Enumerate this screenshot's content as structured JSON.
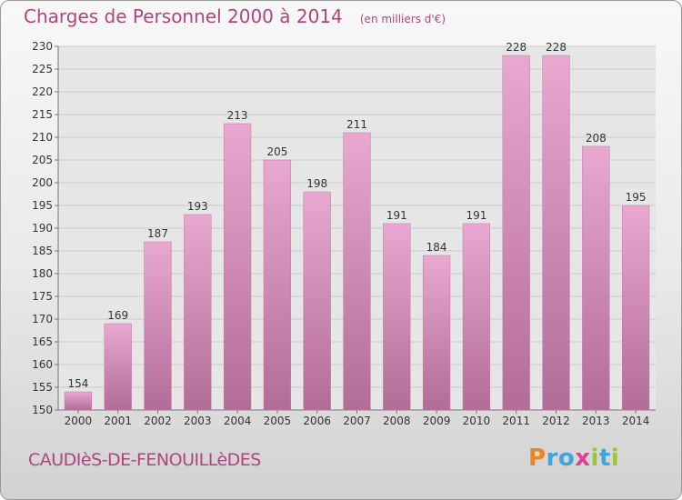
{
  "header": {
    "title": "Charges de Personnel 2000 à 2014",
    "subtitle": "(en milliers d'€)"
  },
  "footer": {
    "commune": "CAUDIèS-DE-FENOUILLèDES",
    "logo_text": "Proxiti"
  },
  "colors": {
    "accent": "#b0457d",
    "bar_light": "#e8a8d0",
    "bar_dark": "#b26c98"
  },
  "chart_data": {
    "type": "bar",
    "title": "Charges de Personnel 2000 à 2014",
    "subtitle": "(en milliers d'€)",
    "xlabel": "",
    "ylabel": "",
    "categories": [
      "2000",
      "2001",
      "2002",
      "2003",
      "2004",
      "2005",
      "2006",
      "2007",
      "2008",
      "2009",
      "2010",
      "2011",
      "2012",
      "2013",
      "2014"
    ],
    "values": [
      154,
      169,
      187,
      193,
      213,
      205,
      198,
      211,
      191,
      184,
      191,
      228,
      228,
      208,
      195
    ],
    "ylim": [
      150,
      230
    ],
    "yticks": [
      150,
      155,
      160,
      165,
      170,
      175,
      180,
      185,
      190,
      195,
      200,
      205,
      210,
      215,
      220,
      225,
      230
    ],
    "grid": true,
    "legend": "none"
  }
}
